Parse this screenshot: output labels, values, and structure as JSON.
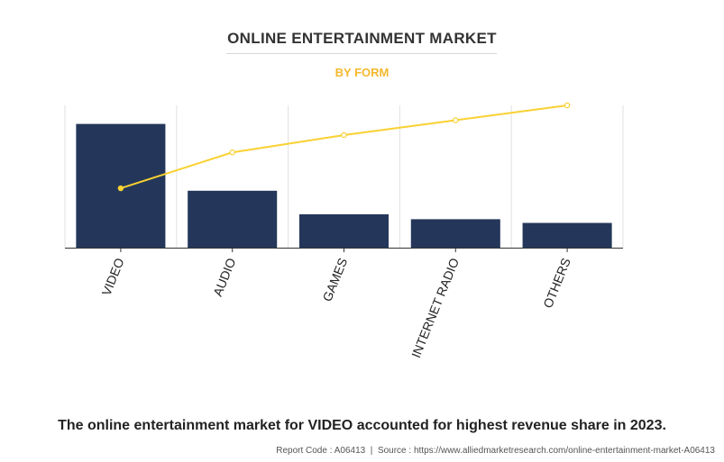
{
  "chart_data": {
    "type": "bar",
    "title": "ONLINE ENTERTAINMENT MARKET",
    "subtitle": "BY FORM",
    "categories": [
      "VIDEO",
      "AUDIO",
      "GAMES",
      "INTERNET RADIO",
      "OTHERS"
    ],
    "series": [
      {
        "type": "bar",
        "values": [
          100,
          46,
          27,
          23,
          20
        ]
      },
      {
        "type": "line",
        "values": [
          48,
          77,
          91,
          103,
          115
        ]
      }
    ],
    "ylim": [
      0,
      115
    ],
    "grid": true,
    "legend": "none",
    "colors": {
      "bar": "#24375a",
      "line": "#f9d132",
      "grid": "#e2e2e2",
      "axis": "#333333"
    }
  },
  "caption": "The online entertainment market for VIDEO accounted for highest revenue share in 2023.",
  "footer": {
    "report_code": "Report Code : A06413",
    "separator": "|",
    "source": "Source : https://www.alliedmarketresearch.com/online-entertainment-market-A06413"
  }
}
